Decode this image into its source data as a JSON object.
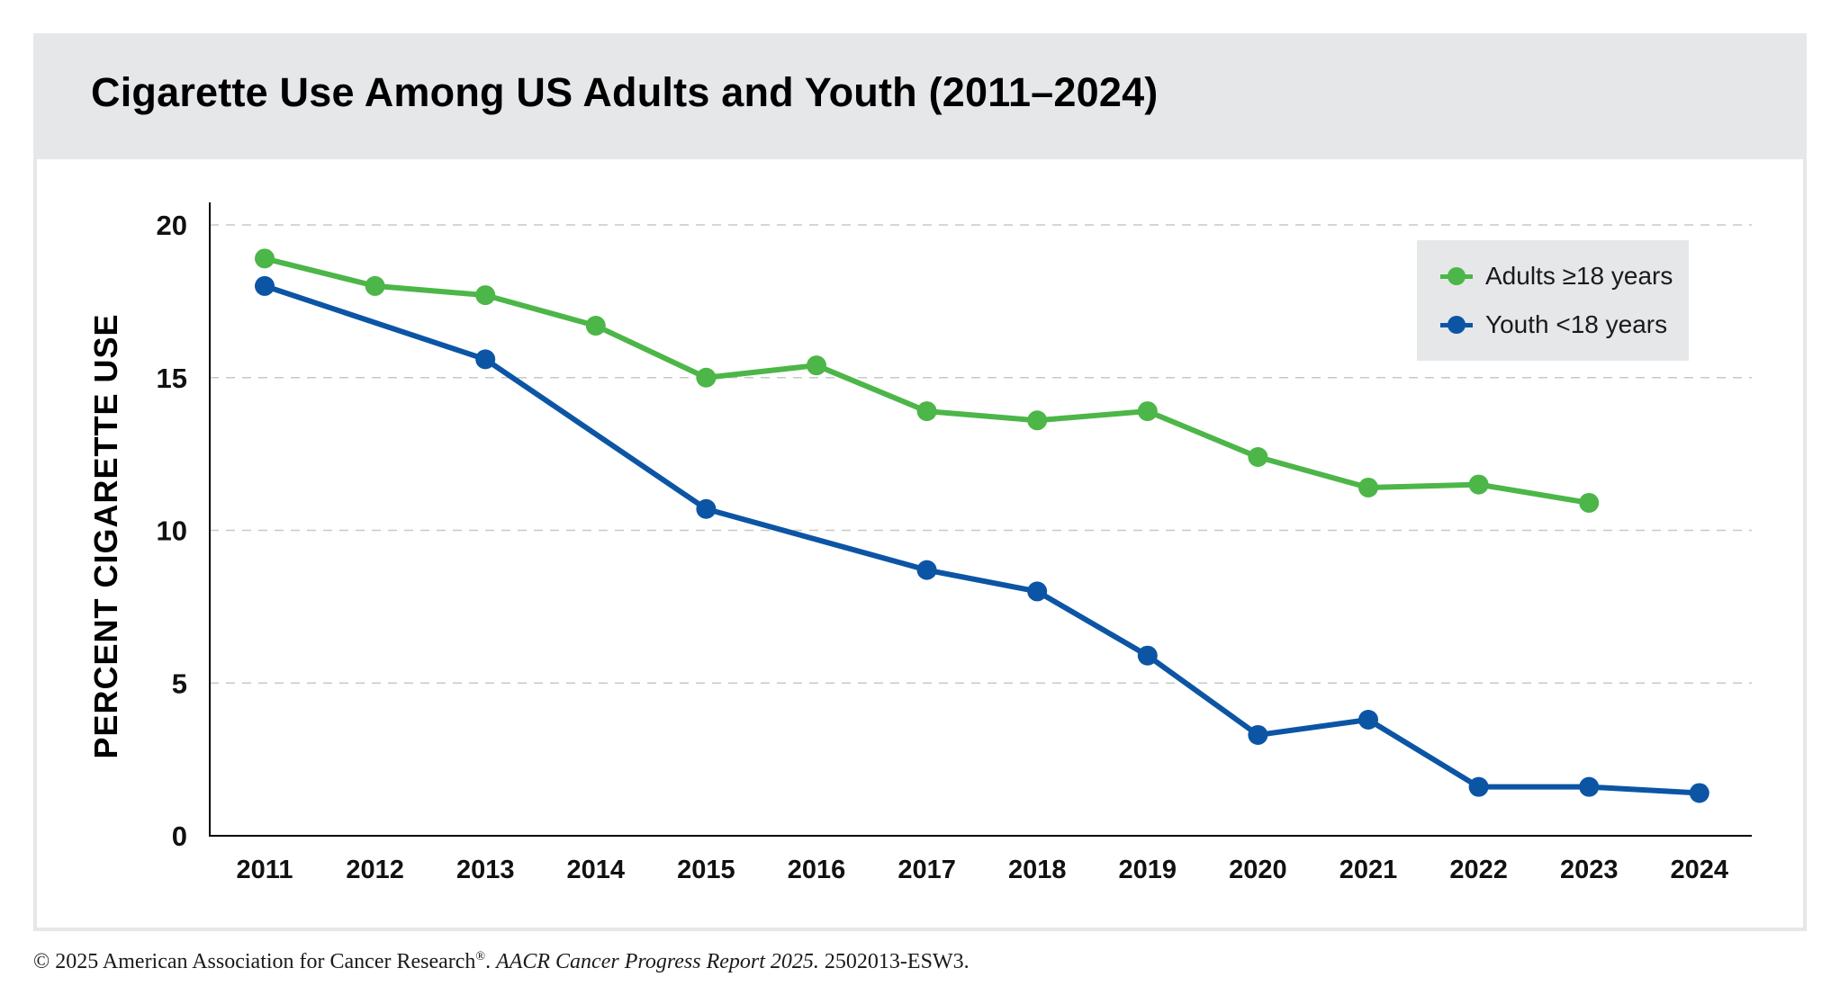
{
  "chart_data": {
    "type": "line",
    "title": "Cigarette Use Among US Adults and Youth (2011–2024)",
    "xlabel": "",
    "ylabel": "PERCENT CIGARETTE USE",
    "categories": [
      "2011",
      "2012",
      "2013",
      "2014",
      "2015",
      "2016",
      "2017",
      "2018",
      "2019",
      "2020",
      "2021",
      "2022",
      "2023",
      "2024"
    ],
    "yticks": [
      0,
      5,
      10,
      15,
      20
    ],
    "ylim": [
      0,
      20
    ],
    "grid": "horizontal dashed",
    "legend_position": "top-right",
    "series": [
      {
        "name": "Adults ≥18 years",
        "color": "#4cb648",
        "values": [
          18.9,
          18.0,
          17.7,
          16.7,
          15.0,
          15.4,
          13.9,
          13.6,
          13.9,
          12.4,
          11.4,
          11.5,
          10.9,
          null
        ]
      },
      {
        "name": "Youth <18 years",
        "color": "#0c55a5",
        "values": [
          18.0,
          null,
          15.6,
          null,
          10.7,
          null,
          8.7,
          8.0,
          5.9,
          3.3,
          3.8,
          1.6,
          1.6,
          1.4
        ]
      }
    ]
  },
  "footer": {
    "copyright": "© 2025 American Association for Cancer Research",
    "registered": "®",
    "separator": ". ",
    "report": "AACR Cancer Progress Report 2025.",
    "code": " 2502013-ESW3."
  }
}
